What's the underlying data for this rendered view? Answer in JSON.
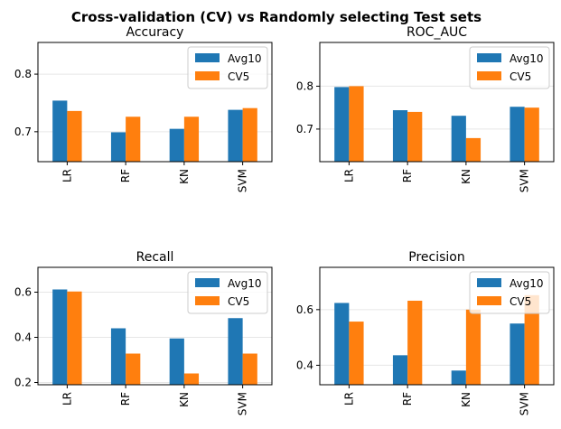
{
  "suptitle": "Cross-validation (CV) vs Randomly selecting Test sets",
  "colors": {
    "Avg10": "#1f77b4",
    "CV5": "#ff7f0e"
  },
  "chart_data": [
    {
      "type": "bar",
      "title": "Accuracy",
      "categories": [
        "LR",
        "RF",
        "KN",
        "SVM"
      ],
      "series": [
        {
          "name": "Avg10",
          "values": [
            0.754,
            0.699,
            0.705,
            0.738
          ]
        },
        {
          "name": "CV5",
          "values": [
            0.736,
            0.726,
            0.726,
            0.741
          ]
        }
      ],
      "ylim": [
        0.648,
        0.855
      ],
      "yticks": [
        0.7,
        0.8
      ],
      "ytick_labels": [
        "0.7",
        "0.8"
      ],
      "grid": "horizontal",
      "legend": "upper right"
    },
    {
      "type": "bar",
      "title": "ROC_AUC",
      "categories": [
        "LR",
        "RF",
        "KN",
        "SVM"
      ],
      "series": [
        {
          "name": "Avg10",
          "values": [
            0.798,
            0.744,
            0.731,
            0.752
          ]
        },
        {
          "name": "CV5",
          "values": [
            0.8,
            0.74,
            0.679,
            0.75
          ]
        }
      ],
      "ylim": [
        0.624,
        0.902
      ],
      "yticks": [
        0.7,
        0.8
      ],
      "ytick_labels": [
        "0.7",
        "0.8"
      ],
      "grid": "horizontal",
      "legend": "upper right"
    },
    {
      "type": "bar",
      "title": "Recall",
      "categories": [
        "LR",
        "RF",
        "KN",
        "SVM"
      ],
      "series": [
        {
          "name": "Avg10",
          "values": [
            0.612,
            0.44,
            0.395,
            0.485
          ]
        },
        {
          "name": "CV5",
          "values": [
            0.603,
            0.328,
            0.24,
            0.328
          ]
        }
      ],
      "ylim": [
        0.19,
        0.71
      ],
      "yticks": [
        0.2,
        0.4,
        0.6
      ],
      "ytick_labels": [
        "0.2",
        "0.4",
        "0.6"
      ],
      "grid": "horizontal",
      "legend": "upper right"
    },
    {
      "type": "bar",
      "title": "Precision",
      "categories": [
        "LR",
        "RF",
        "KN",
        "SVM"
      ],
      "series": [
        {
          "name": "Avg10",
          "values": [
            0.624,
            0.436,
            0.381,
            0.55
          ]
        },
        {
          "name": "CV5",
          "values": [
            0.557,
            0.632,
            0.6,
            0.652
          ]
        }
      ],
      "ylim": [
        0.33,
        0.752
      ],
      "yticks": [
        0.4,
        0.6
      ],
      "ytick_labels": [
        "0.4",
        "0.6"
      ],
      "grid": "horizontal",
      "legend": "upper right"
    }
  ]
}
